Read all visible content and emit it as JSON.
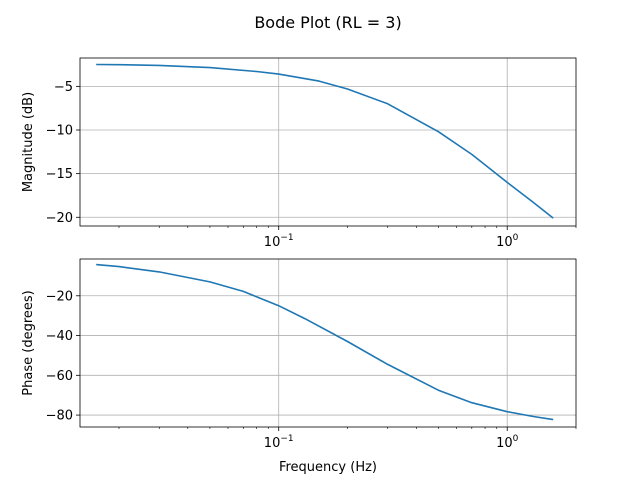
{
  "chart_data": {
    "suptitle": "Bode Plot (RL = 3)",
    "type": "line",
    "line_color": "#1f77b4",
    "grid": true,
    "xscale": "log",
    "xlabel": "Frequency (Hz)",
    "panels": [
      {
        "id": "magnitude",
        "type": "line",
        "ylabel": "Magnitude (dB)",
        "xlim": [
          0.0135,
          2.0
        ],
        "ylim": [
          -21,
          -1.75
        ],
        "yticks": [
          -5,
          -10,
          -15,
          -20
        ],
        "ytick_labels": [
          "−5",
          "−10",
          "−15",
          "−20"
        ],
        "xticks": [
          0.1,
          1.0
        ],
        "xtick_labels": [
          "10",
          "10"
        ],
        "xtick_exponents": [
          "−1",
          "0"
        ],
        "show_xlabel": false,
        "series": [
          {
            "x": [
              0.0159,
              0.02,
              0.03,
              0.05,
              0.08,
              0.1,
              0.15,
              0.2,
              0.3,
              0.5,
              0.7,
              1.0,
              1.3,
              1.59
            ],
            "y": [
              -2.5,
              -2.52,
              -2.6,
              -2.85,
              -3.3,
              -3.6,
              -4.4,
              -5.3,
              -7.0,
              -10.2,
              -12.8,
              -16.0,
              -18.3,
              -20.1
            ]
          }
        ]
      },
      {
        "id": "phase",
        "type": "line",
        "ylabel": "Phase (degrees)",
        "xlim": [
          0.0135,
          2.0
        ],
        "ylim": [
          -86,
          -1.5
        ],
        "yticks": [
          -20,
          -40,
          -60,
          -80
        ],
        "ytick_labels": [
          "−20",
          "−40",
          "−60",
          "−80"
        ],
        "xticks": [
          0.1,
          1.0
        ],
        "xtick_labels": [
          "10",
          "10"
        ],
        "xtick_exponents": [
          "−1",
          "0"
        ],
        "show_xlabel": true,
        "series": [
          {
            "x": [
              0.0159,
              0.02,
              0.03,
              0.05,
              0.07,
              0.1,
              0.13,
              0.2,
              0.3,
              0.5,
              0.7,
              1.0,
              1.3,
              1.59
            ],
            "y": [
              -4.3,
              -5.3,
              -8.0,
              -13.0,
              -17.8,
              -25.0,
              -31.5,
              -43.0,
              -54.5,
              -67.5,
              -73.8,
              -78.3,
              -80.7,
              -82.3
            ]
          }
        ]
      }
    ]
  }
}
